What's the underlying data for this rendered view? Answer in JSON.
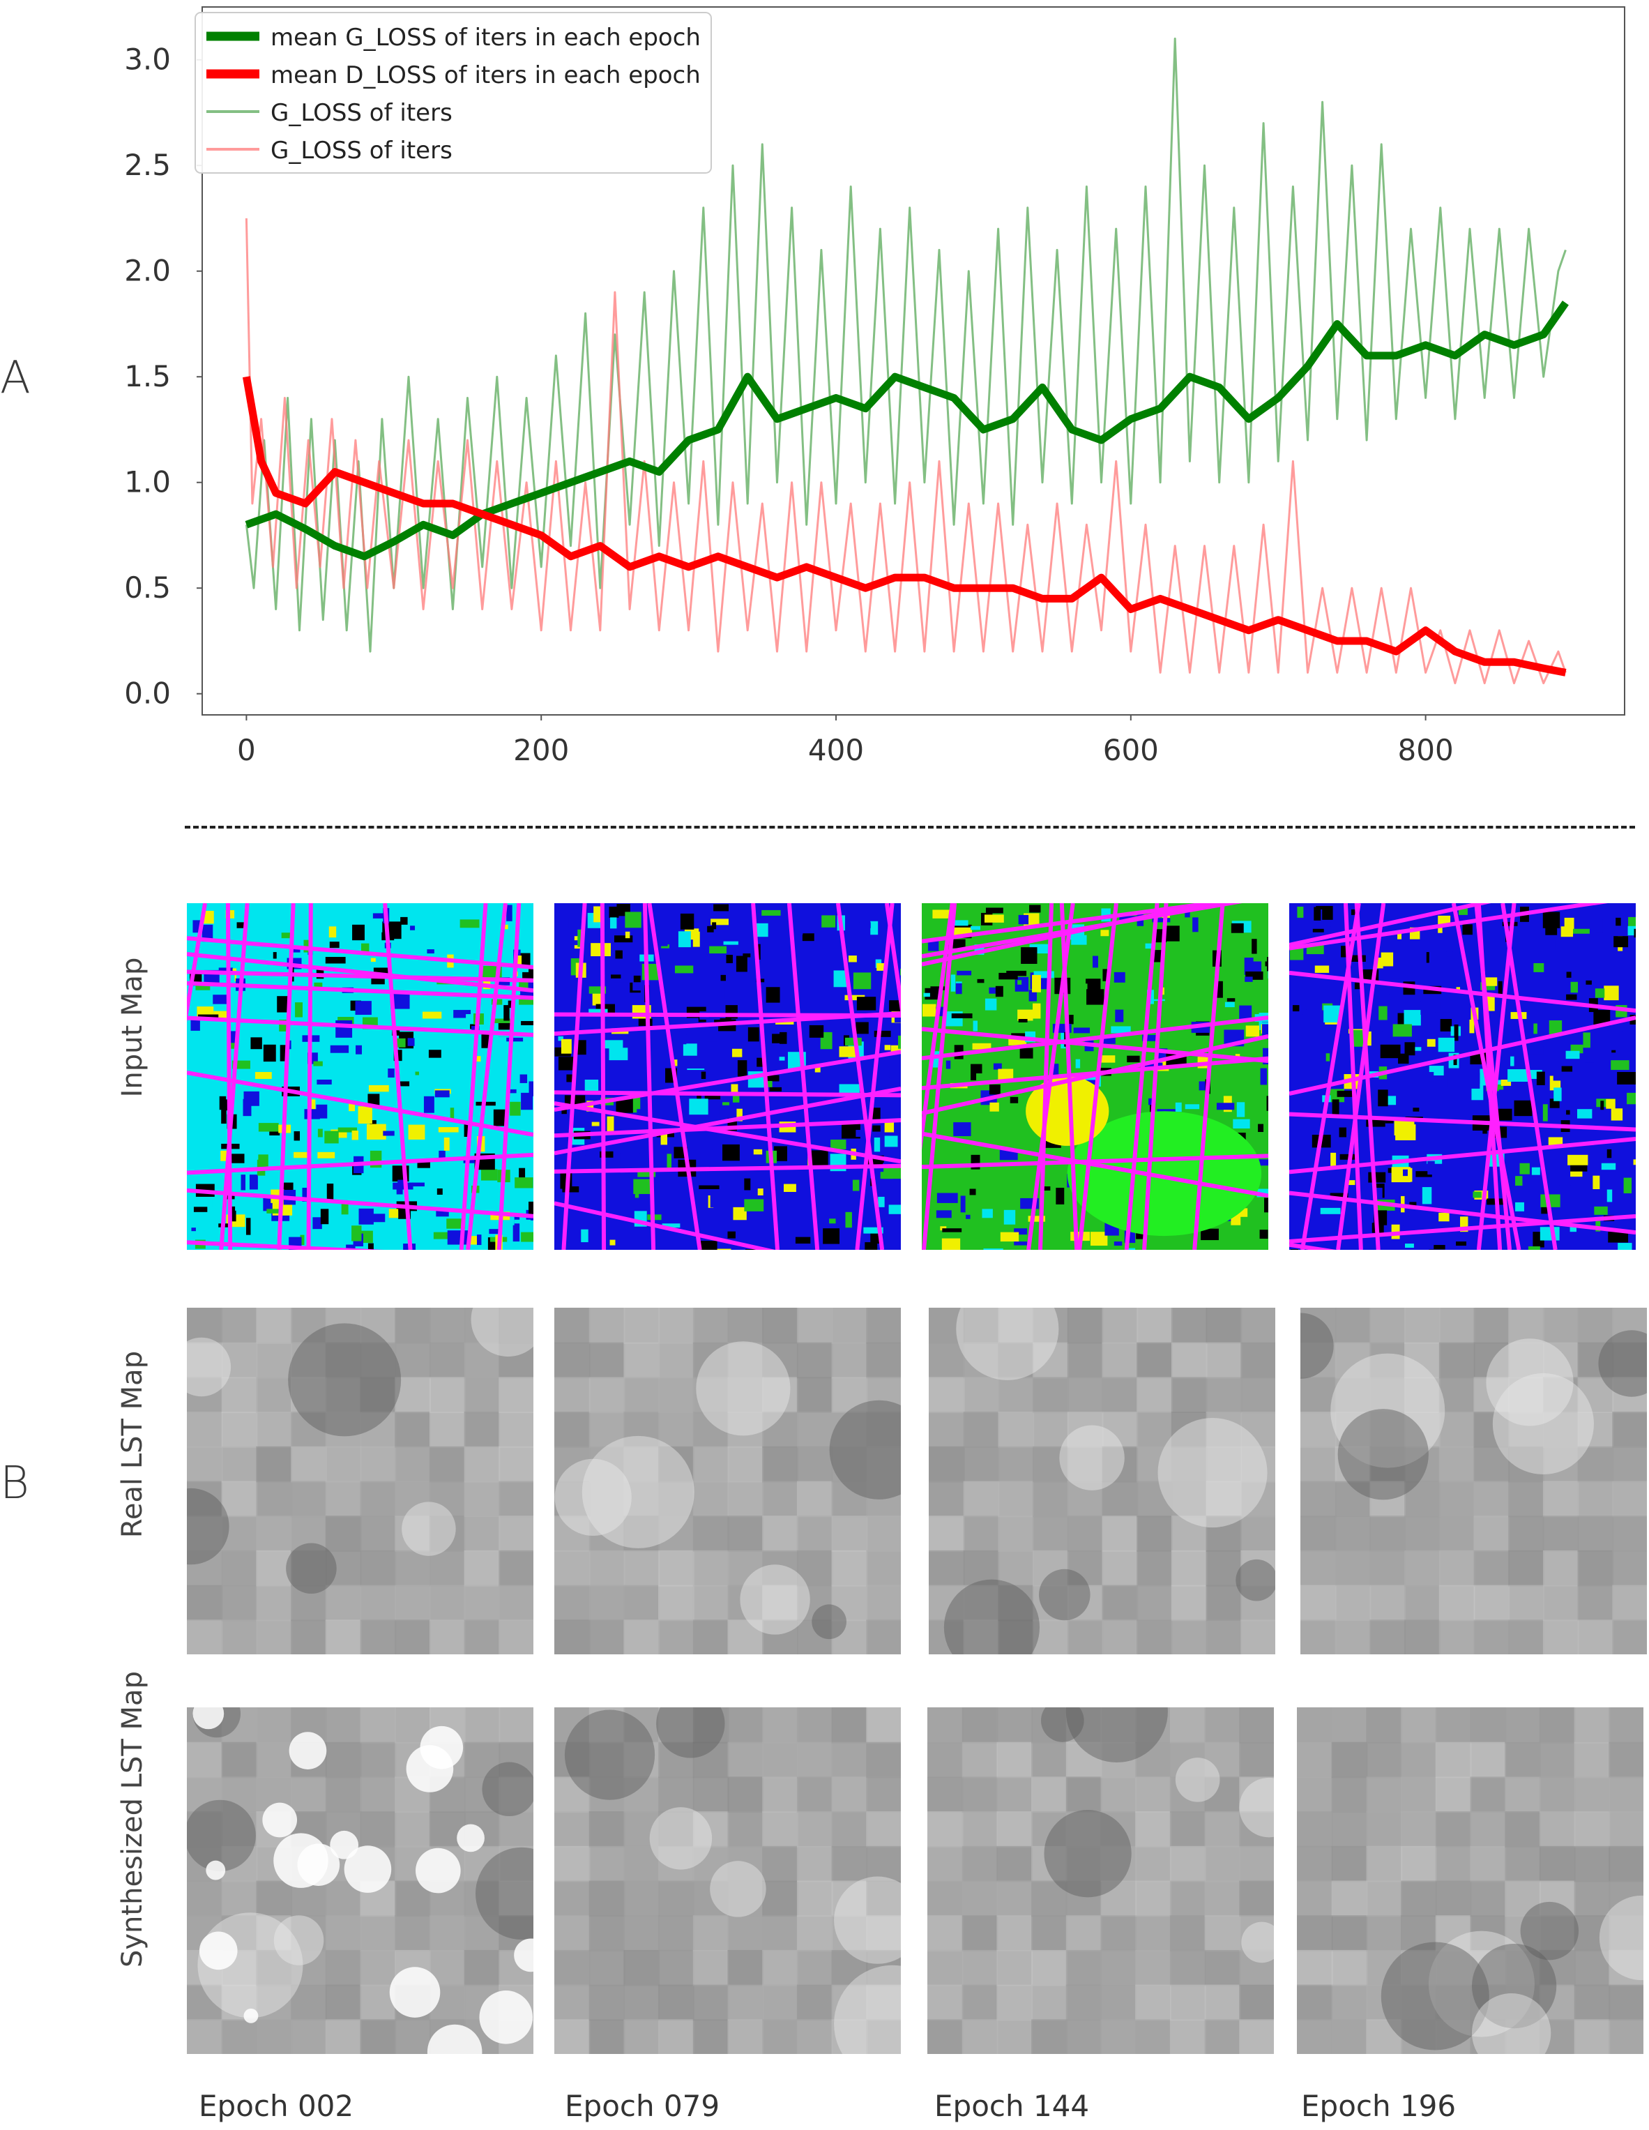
{
  "panels": {
    "a_label": "A",
    "b_label": "B"
  },
  "chart_data": {
    "type": "line",
    "legend_location": "top-left",
    "xlim": [
      -30,
      935
    ],
    "ylim": [
      -0.1,
      3.25
    ],
    "xticks": [
      "0",
      "200",
      "400",
      "600",
      "800"
    ],
    "xtick_values": [
      0,
      200,
      400,
      600,
      800
    ],
    "yticks": [
      "0.0",
      "0.5",
      "1.0",
      "1.5",
      "2.0",
      "2.5",
      "3.0"
    ],
    "ytick_values": [
      0.0,
      0.5,
      1.0,
      1.5,
      2.0,
      2.5,
      3.0
    ],
    "grid": false,
    "series": [
      {
        "name": "mean G_LOSS of iters in each epoch",
        "color": "#008000",
        "style": "thick",
        "points": [
          [
            0,
            0.8
          ],
          [
            20,
            0.85
          ],
          [
            40,
            0.78
          ],
          [
            60,
            0.7
          ],
          [
            80,
            0.65
          ],
          [
            100,
            0.72
          ],
          [
            120,
            0.8
          ],
          [
            140,
            0.75
          ],
          [
            160,
            0.85
          ],
          [
            180,
            0.9
          ],
          [
            200,
            0.95
          ],
          [
            220,
            1.0
          ],
          [
            240,
            1.05
          ],
          [
            260,
            1.1
          ],
          [
            280,
            1.05
          ],
          [
            300,
            1.2
          ],
          [
            320,
            1.25
          ],
          [
            340,
            1.5
          ],
          [
            360,
            1.3
          ],
          [
            380,
            1.35
          ],
          [
            400,
            1.4
          ],
          [
            420,
            1.35
          ],
          [
            440,
            1.5
          ],
          [
            460,
            1.45
          ],
          [
            480,
            1.4
          ],
          [
            500,
            1.25
          ],
          [
            520,
            1.3
          ],
          [
            540,
            1.45
          ],
          [
            560,
            1.25
          ],
          [
            580,
            1.2
          ],
          [
            600,
            1.3
          ],
          [
            620,
            1.35
          ],
          [
            640,
            1.5
          ],
          [
            660,
            1.45
          ],
          [
            680,
            1.3
          ],
          [
            700,
            1.4
          ],
          [
            720,
            1.55
          ],
          [
            740,
            1.75
          ],
          [
            760,
            1.6
          ],
          [
            780,
            1.6
          ],
          [
            800,
            1.65
          ],
          [
            820,
            1.6
          ],
          [
            840,
            1.7
          ],
          [
            860,
            1.65
          ],
          [
            880,
            1.7
          ],
          [
            895,
            1.85
          ]
        ]
      },
      {
        "name": "mean D_LOSS of iters in each epoch",
        "color": "#ff0000",
        "style": "thick",
        "points": [
          [
            0,
            1.5
          ],
          [
            10,
            1.1
          ],
          [
            20,
            0.95
          ],
          [
            40,
            0.9
          ],
          [
            60,
            1.05
          ],
          [
            80,
            1.0
          ],
          [
            100,
            0.95
          ],
          [
            120,
            0.9
          ],
          [
            140,
            0.9
          ],
          [
            160,
            0.85
          ],
          [
            180,
            0.8
          ],
          [
            200,
            0.75
          ],
          [
            220,
            0.65
          ],
          [
            240,
            0.7
          ],
          [
            260,
            0.6
          ],
          [
            280,
            0.65
          ],
          [
            300,
            0.6
          ],
          [
            320,
            0.65
          ],
          [
            340,
            0.6
          ],
          [
            360,
            0.55
          ],
          [
            380,
            0.6
          ],
          [
            400,
            0.55
          ],
          [
            420,
            0.5
          ],
          [
            440,
            0.55
          ],
          [
            460,
            0.55
          ],
          [
            480,
            0.5
          ],
          [
            500,
            0.5
          ],
          [
            520,
            0.5
          ],
          [
            540,
            0.45
          ],
          [
            560,
            0.45
          ],
          [
            580,
            0.55
          ],
          [
            600,
            0.4
          ],
          [
            620,
            0.45
          ],
          [
            640,
            0.4
          ],
          [
            660,
            0.35
          ],
          [
            680,
            0.3
          ],
          [
            700,
            0.35
          ],
          [
            720,
            0.3
          ],
          [
            740,
            0.25
          ],
          [
            760,
            0.25
          ],
          [
            780,
            0.2
          ],
          [
            800,
            0.3
          ],
          [
            820,
            0.2
          ],
          [
            840,
            0.15
          ],
          [
            860,
            0.15
          ],
          [
            880,
            0.12
          ],
          [
            895,
            0.1
          ]
        ]
      },
      {
        "name": "G_LOSS of iters",
        "color": "#5aaa5a",
        "style": "thin",
        "points": [
          [
            0,
            0.8
          ],
          [
            5,
            0.5
          ],
          [
            12,
            1.2
          ],
          [
            20,
            0.4
          ],
          [
            28,
            1.4
          ],
          [
            36,
            0.3
          ],
          [
            44,
            1.3
          ],
          [
            52,
            0.35
          ],
          [
            60,
            1.2
          ],
          [
            68,
            0.3
          ],
          [
            76,
            1.1
          ],
          [
            84,
            0.2
          ],
          [
            92,
            1.3
          ],
          [
            100,
            0.5
          ],
          [
            110,
            1.5
          ],
          [
            120,
            0.5
          ],
          [
            130,
            1.3
          ],
          [
            140,
            0.4
          ],
          [
            150,
            1.4
          ],
          [
            160,
            0.6
          ],
          [
            170,
            1.5
          ],
          [
            180,
            0.5
          ],
          [
            190,
            1.4
          ],
          [
            200,
            0.6
          ],
          [
            210,
            1.6
          ],
          [
            220,
            0.7
          ],
          [
            230,
            1.8
          ],
          [
            240,
            0.5
          ],
          [
            250,
            1.7
          ],
          [
            260,
            0.8
          ],
          [
            270,
            1.9
          ],
          [
            280,
            0.7
          ],
          [
            290,
            2.0
          ],
          [
            300,
            0.9
          ],
          [
            310,
            2.3
          ],
          [
            320,
            0.8
          ],
          [
            330,
            2.5
          ],
          [
            340,
            0.9
          ],
          [
            350,
            2.6
          ],
          [
            360,
            1.0
          ],
          [
            370,
            2.3
          ],
          [
            380,
            0.8
          ],
          [
            390,
            2.1
          ],
          [
            400,
            0.9
          ],
          [
            410,
            2.4
          ],
          [
            420,
            1.0
          ],
          [
            430,
            2.2
          ],
          [
            440,
            0.9
          ],
          [
            450,
            2.3
          ],
          [
            460,
            1.0
          ],
          [
            470,
            2.1
          ],
          [
            480,
            0.8
          ],
          [
            490,
            2.0
          ],
          [
            500,
            0.9
          ],
          [
            510,
            2.2
          ],
          [
            520,
            0.8
          ],
          [
            530,
            2.3
          ],
          [
            540,
            1.0
          ],
          [
            550,
            2.1
          ],
          [
            560,
            0.9
          ],
          [
            570,
            2.4
          ],
          [
            580,
            1.0
          ],
          [
            590,
            2.2
          ],
          [
            600,
            0.9
          ],
          [
            610,
            2.4
          ],
          [
            620,
            1.0
          ],
          [
            630,
            3.1
          ],
          [
            640,
            1.1
          ],
          [
            650,
            2.5
          ],
          [
            660,
            1.0
          ],
          [
            670,
            2.3
          ],
          [
            680,
            1.0
          ],
          [
            690,
            2.7
          ],
          [
            700,
            1.1
          ],
          [
            710,
            2.4
          ],
          [
            720,
            1.2
          ],
          [
            730,
            2.8
          ],
          [
            740,
            1.3
          ],
          [
            750,
            2.5
          ],
          [
            760,
            1.2
          ],
          [
            770,
            2.6
          ],
          [
            780,
            1.3
          ],
          [
            790,
            2.2
          ],
          [
            800,
            1.4
          ],
          [
            810,
            2.3
          ],
          [
            820,
            1.3
          ],
          [
            830,
            2.2
          ],
          [
            840,
            1.4
          ],
          [
            850,
            2.2
          ],
          [
            860,
            1.4
          ],
          [
            870,
            2.2
          ],
          [
            880,
            1.5
          ],
          [
            890,
            2.0
          ],
          [
            895,
            2.1
          ]
        ]
      },
      {
        "name": "G_LOSS of iters",
        "color": "#ff7a7a",
        "style": "thin",
        "points": [
          [
            0,
            2.25
          ],
          [
            4,
            0.9
          ],
          [
            10,
            1.3
          ],
          [
            18,
            0.6
          ],
          [
            26,
            1.4
          ],
          [
            34,
            0.5
          ],
          [
            42,
            1.2
          ],
          [
            50,
            0.6
          ],
          [
            58,
            1.3
          ],
          [
            66,
            0.5
          ],
          [
            74,
            1.2
          ],
          [
            82,
            0.5
          ],
          [
            90,
            1.1
          ],
          [
            100,
            0.5
          ],
          [
            110,
            1.2
          ],
          [
            120,
            0.4
          ],
          [
            130,
            1.1
          ],
          [
            140,
            0.5
          ],
          [
            150,
            1.2
          ],
          [
            160,
            0.4
          ],
          [
            170,
            1.1
          ],
          [
            180,
            0.4
          ],
          [
            190,
            1.0
          ],
          [
            200,
            0.3
          ],
          [
            210,
            1.1
          ],
          [
            220,
            0.3
          ],
          [
            230,
            1.0
          ],
          [
            240,
            0.3
          ],
          [
            250,
            1.9
          ],
          [
            260,
            0.4
          ],
          [
            270,
            1.1
          ],
          [
            280,
            0.3
          ],
          [
            290,
            1.0
          ],
          [
            300,
            0.3
          ],
          [
            310,
            1.1
          ],
          [
            320,
            0.2
          ],
          [
            330,
            1.0
          ],
          [
            340,
            0.3
          ],
          [
            350,
            0.9
          ],
          [
            360,
            0.2
          ],
          [
            370,
            1.0
          ],
          [
            380,
            0.2
          ],
          [
            390,
            1.0
          ],
          [
            400,
            0.3
          ],
          [
            410,
            0.9
          ],
          [
            420,
            0.2
          ],
          [
            430,
            0.9
          ],
          [
            440,
            0.2
          ],
          [
            450,
            1.0
          ],
          [
            460,
            0.2
          ],
          [
            470,
            1.1
          ],
          [
            480,
            0.2
          ],
          [
            490,
            0.9
          ],
          [
            500,
            0.2
          ],
          [
            510,
            0.9
          ],
          [
            520,
            0.2
          ],
          [
            530,
            0.8
          ],
          [
            540,
            0.2
          ],
          [
            550,
            0.9
          ],
          [
            560,
            0.2
          ],
          [
            570,
            0.8
          ],
          [
            580,
            0.3
          ],
          [
            590,
            1.1
          ],
          [
            600,
            0.2
          ],
          [
            610,
            0.8
          ],
          [
            620,
            0.1
          ],
          [
            630,
            0.7
          ],
          [
            640,
            0.1
          ],
          [
            650,
            0.7
          ],
          [
            660,
            0.1
          ],
          [
            670,
            0.7
          ],
          [
            680,
            0.1
          ],
          [
            690,
            0.8
          ],
          [
            700,
            0.1
          ],
          [
            710,
            1.1
          ],
          [
            720,
            0.1
          ],
          [
            730,
            0.5
          ],
          [
            740,
            0.1
          ],
          [
            750,
            0.5
          ],
          [
            760,
            0.1
          ],
          [
            770,
            0.5
          ],
          [
            780,
            0.1
          ],
          [
            790,
            0.5
          ],
          [
            800,
            0.1
          ],
          [
            810,
            0.3
          ],
          [
            820,
            0.05
          ],
          [
            830,
            0.3
          ],
          [
            840,
            0.05
          ],
          [
            850,
            0.3
          ],
          [
            860,
            0.05
          ],
          [
            870,
            0.25
          ],
          [
            880,
            0.05
          ],
          [
            890,
            0.2
          ],
          [
            895,
            0.1
          ]
        ]
      }
    ]
  },
  "grid_rows": [
    {
      "label": "Input Map",
      "kind": "landuse"
    },
    {
      "label": "Real LST Map",
      "kind": "gray"
    },
    {
      "label": "Synthesized LST Map",
      "kind": "gray"
    }
  ],
  "epochs": [
    "Epoch 002",
    "Epoch 079",
    "Epoch 144",
    "Epoch 196"
  ]
}
